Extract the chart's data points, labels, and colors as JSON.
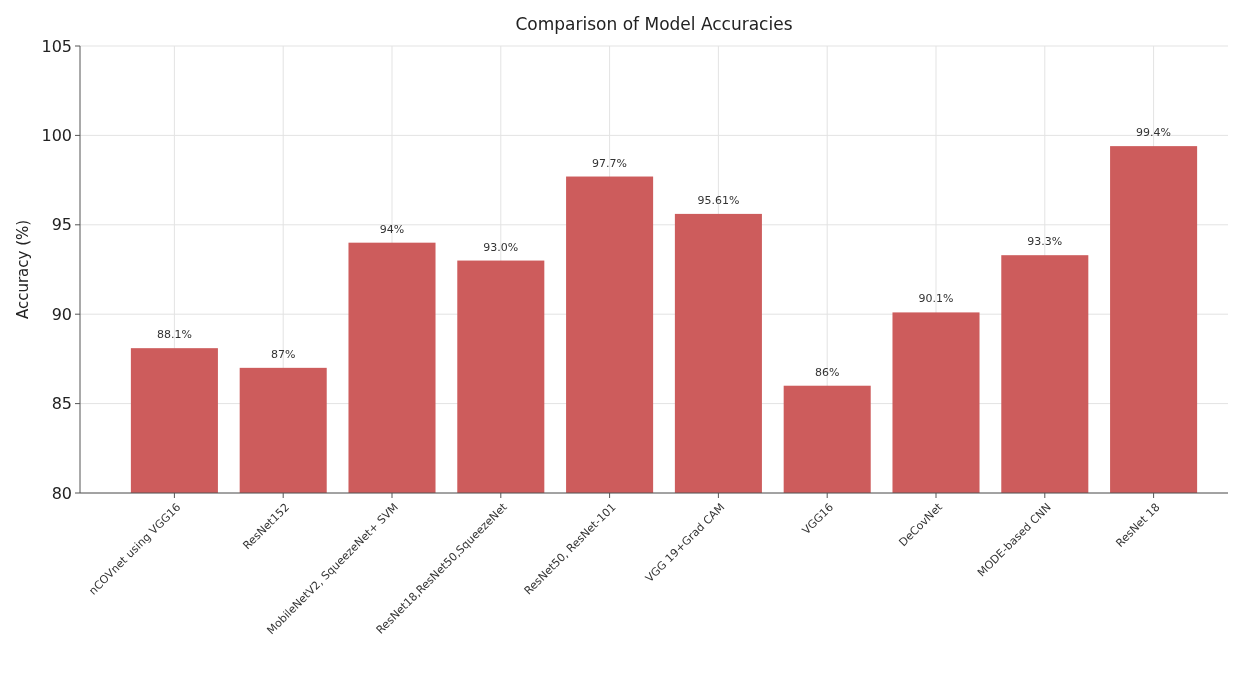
{
  "chart_data": {
    "type": "bar",
    "title": "Comparison of Model Accuracies",
    "ylabel": "Accuracy (%)",
    "categories": [
      "nCOVnet using VGG16",
      "ResNet152",
      "MobileNetV2, SqueezeNet+ SVM",
      "ResNet18,ResNet50,SqueezeNet",
      "ResNet50, ResNet-101",
      "VGG 19+Grad CAM",
      "VGG16",
      "DeCovNet",
      "MODE-based CNN",
      "ResNet 18"
    ],
    "values": [
      88.1,
      87,
      94,
      93.0,
      97.7,
      95.61,
      86,
      90.1,
      93.3,
      99.4
    ],
    "value_labels": [
      "88.1%",
      "87%",
      "94%",
      "93.0%",
      "97.7%",
      "95.61%",
      "86%",
      "90.1%",
      "93.3%",
      "99.4%"
    ],
    "color": "#cd5c5c",
    "ylim": [
      80,
      105
    ],
    "yticks": [
      80,
      85,
      90,
      95,
      100,
      105
    ],
    "grid": true
  }
}
